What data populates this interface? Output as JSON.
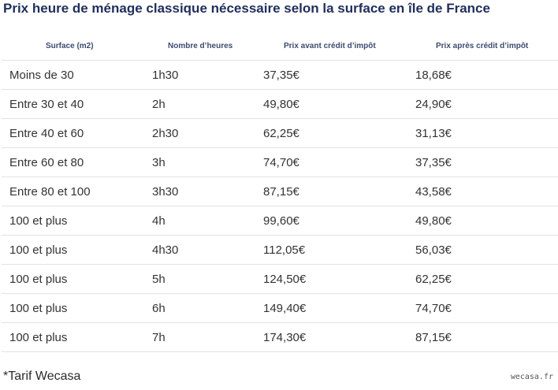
{
  "title": "Prix heure de ménage classique nécessaire selon la surface en île de France",
  "table": {
    "headers": [
      "Surface (m2)",
      "Nombre d’heures",
      "Prix avant crédit d’impôt",
      "Prix après crédit d’impôt"
    ],
    "rows": [
      [
        "Moins de 30",
        "1h30",
        "37,35€",
        "18,68€"
      ],
      [
        "Entre 30 et 40",
        "2h",
        "49,80€",
        "24,90€"
      ],
      [
        "Entre 40 et 60",
        "2h30",
        "62,25€",
        "31,13€"
      ],
      [
        "Entre 60 et 80",
        "3h",
        "74,70€",
        "37,35€"
      ],
      [
        "Entre 80 et 100",
        "3h30",
        "87,15€",
        "43,58€"
      ],
      [
        "100 et plus",
        "4h",
        "99,60€",
        "49,80€"
      ],
      [
        "100 et plus",
        "4h30",
        "112,05€",
        "56,03€"
      ],
      [
        "100 et plus",
        "5h",
        "124,50€",
        "62,25€"
      ],
      [
        "100 et plus",
        "6h",
        "149,40€",
        "74,70€"
      ],
      [
        "100 et plus",
        "7h",
        "174,30€",
        "87,15€"
      ]
    ]
  },
  "footnote": "*Tarif Wecasa",
  "watermark": "wecasa.fr",
  "colors": {
    "title": "#1f2f5c",
    "header_text": "#3d4b6e",
    "row_border": "#e2e2e2"
  }
}
